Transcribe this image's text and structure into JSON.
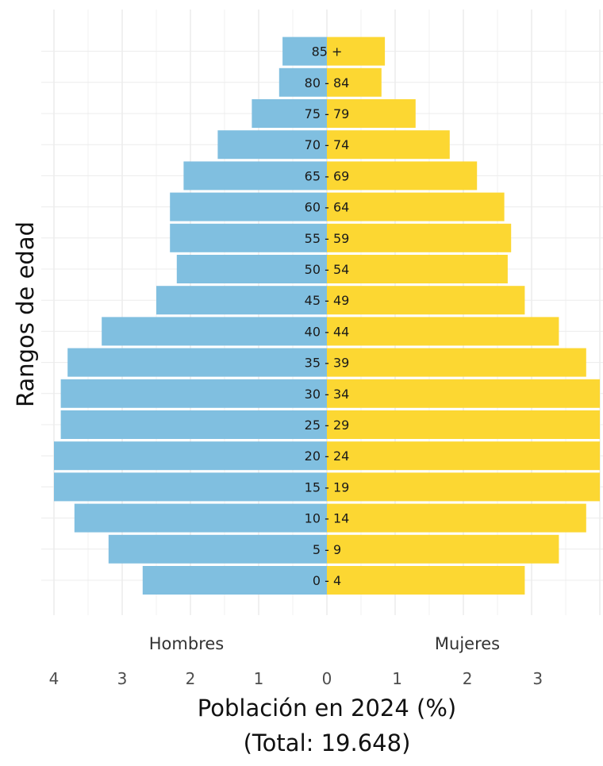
{
  "chart_data": {
    "type": "bar",
    "orientation": "horizontal",
    "categories": [
      "0 - 4",
      "5 - 9",
      "10 - 14",
      "15 - 19",
      "20 - 24",
      "25 - 29",
      "30 - 34",
      "35 - 39",
      "40 - 44",
      "45 - 49",
      "50 - 54",
      "55 - 59",
      "60 - 64",
      "65 - 69",
      "70 - 74",
      "75 - 79",
      "80 - 84",
      "85 +"
    ],
    "series": [
      {
        "name": "Hombres",
        "side": "left",
        "color": "#80bfe0",
        "values": [
          2.7,
          3.2,
          3.7,
          4.0,
          4.0,
          3.9,
          3.9,
          3.8,
          3.3,
          2.5,
          2.2,
          2.3,
          2.3,
          2.1,
          1.6,
          1.1,
          0.7,
          0.65
        ]
      },
      {
        "name": "Mujeres",
        "side": "right",
        "color": "#fcd732",
        "values": [
          2.9,
          3.4,
          3.8,
          4.0,
          4.0,
          4.0,
          4.0,
          3.8,
          3.4,
          2.9,
          2.65,
          2.7,
          2.6,
          2.2,
          1.8,
          1.3,
          0.8,
          0.85
        ]
      }
    ],
    "xlabel": "Población en 2024 (%)",
    "xlabel_sub": "(Total: 19.648)",
    "ylabel": "Rangos de edad",
    "side_labels": {
      "left": "Hombres",
      "right": "Mujeres"
    },
    "xticks_left": [
      "4",
      "3",
      "2",
      "1",
      "0"
    ],
    "xticks_right": [
      "1",
      "2",
      "3"
    ],
    "xlim": [
      -4,
      4
    ],
    "grid": true,
    "legend": "none"
  }
}
